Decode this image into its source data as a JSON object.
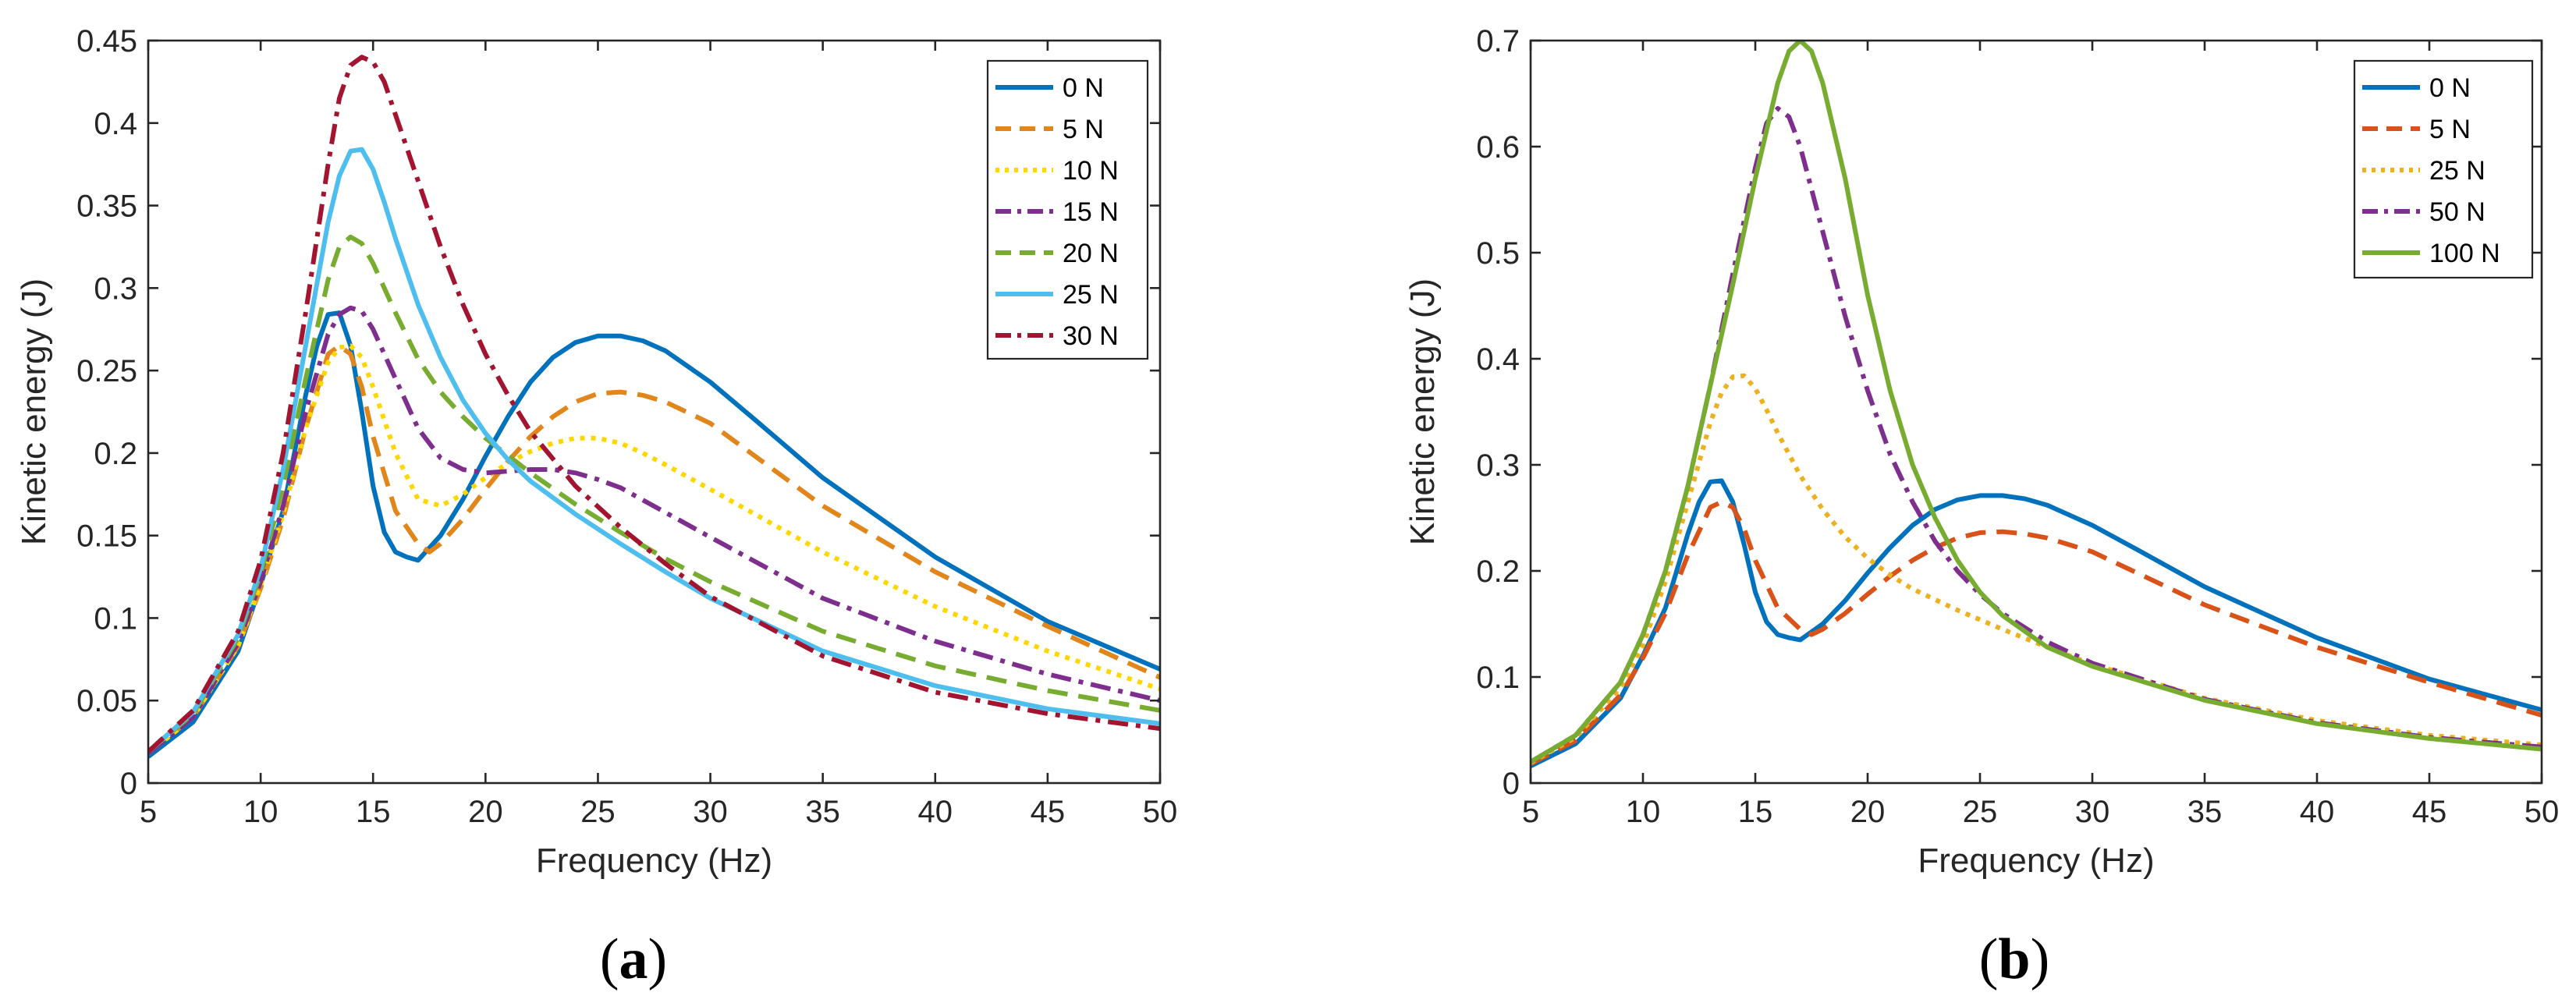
{
  "colors": {
    "blue": "#0072BD",
    "orange": "#D95319",
    "orange_light": "#E0861A",
    "yellow": "#EDB120",
    "yellow_bright": "#FFD700",
    "purple": "#7E2F8E",
    "green": "#77AC30",
    "cyan": "#4DBEEE",
    "red": "#A2142F"
  },
  "chart_data": [
    {
      "type": "line",
      "panel_label_open": "(",
      "panel_label": "a",
      "panel_label_close": ")",
      "title": "",
      "xlabel": "Frequency (Hz)",
      "ylabel": "Kinetic energy (J)",
      "xlim": [
        5,
        50
      ],
      "ylim": [
        0,
        0.45
      ],
      "xticks": [
        5,
        10,
        15,
        20,
        25,
        30,
        35,
        40,
        45,
        50
      ],
      "xtick_labels": [
        "5",
        "10",
        "15",
        "20",
        "25",
        "30",
        "35",
        "40",
        "45",
        "50"
      ],
      "yticks": [
        0,
        0.05,
        0.1,
        0.15,
        0.2,
        0.25,
        0.3,
        0.35,
        0.4,
        0.45
      ],
      "ytick_labels": [
        "0",
        "0.05",
        "0.1",
        "0.15",
        "0.2",
        "0.25",
        "0.3",
        "0.35",
        "0.4",
        "0.45"
      ],
      "legend_position": "top-right",
      "series": [
        {
          "name": "0 N",
          "color": "#0072BD",
          "dash": "solid",
          "x": [
            5,
            7,
            9,
            10,
            11,
            12,
            12.5,
            13,
            13.5,
            14,
            14.5,
            15,
            15.5,
            16,
            16.5,
            17,
            18,
            19,
            20,
            21,
            22,
            23,
            24,
            25,
            26,
            27,
            28,
            30,
            32,
            35,
            40,
            45,
            50
          ],
          "y": [
            0.016,
            0.037,
            0.08,
            0.12,
            0.165,
            0.235,
            0.265,
            0.284,
            0.285,
            0.265,
            0.225,
            0.18,
            0.152,
            0.14,
            0.137,
            0.135,
            0.15,
            0.172,
            0.198,
            0.222,
            0.243,
            0.258,
            0.267,
            0.271,
            0.271,
            0.268,
            0.262,
            0.243,
            0.22,
            0.185,
            0.137,
            0.098,
            0.069
          ]
        },
        {
          "name": "5 N",
          "color": "#E0861A",
          "dash": "dashed",
          "x": [
            5,
            7,
            9,
            10,
            11,
            12,
            13,
            13.5,
            14,
            14.5,
            15,
            16,
            17,
            17.5,
            18,
            19,
            20,
            21,
            22,
            23,
            24,
            25,
            26,
            27,
            28,
            30,
            35,
            40,
            45,
            50
          ],
          "y": [
            0.018,
            0.04,
            0.083,
            0.118,
            0.16,
            0.215,
            0.26,
            0.265,
            0.26,
            0.24,
            0.21,
            0.165,
            0.145,
            0.14,
            0.145,
            0.16,
            0.178,
            0.195,
            0.21,
            0.222,
            0.231,
            0.236,
            0.237,
            0.235,
            0.231,
            0.218,
            0.168,
            0.128,
            0.095,
            0.064
          ]
        },
        {
          "name": "10 N",
          "color": "#FFD700",
          "dash": "dotted",
          "x": [
            5,
            7,
            9,
            10,
            11,
            12,
            13,
            13.5,
            14,
            14.5,
            15,
            16,
            17,
            18,
            19,
            20,
            21,
            22,
            23,
            24,
            25,
            26,
            27,
            28,
            30,
            35,
            40,
            45,
            50
          ],
          "y": [
            0.018,
            0.04,
            0.083,
            0.12,
            0.163,
            0.215,
            0.255,
            0.264,
            0.265,
            0.258,
            0.24,
            0.2,
            0.172,
            0.168,
            0.175,
            0.185,
            0.194,
            0.201,
            0.206,
            0.209,
            0.209,
            0.206,
            0.2,
            0.193,
            0.178,
            0.14,
            0.107,
            0.08,
            0.057
          ]
        },
        {
          "name": "15 N",
          "color": "#7E2F8E",
          "dash": "dashdot",
          "x": [
            5,
            7,
            9,
            10,
            11,
            12,
            13,
            13.5,
            14,
            14.5,
            15,
            16,
            17,
            18,
            19,
            20,
            21,
            22,
            23,
            24,
            25,
            26,
            28,
            30,
            35,
            40,
            45,
            50
          ],
          "y": [
            0.018,
            0.04,
            0.085,
            0.122,
            0.168,
            0.225,
            0.272,
            0.284,
            0.288,
            0.286,
            0.275,
            0.245,
            0.215,
            0.197,
            0.19,
            0.188,
            0.189,
            0.19,
            0.19,
            0.188,
            0.184,
            0.179,
            0.164,
            0.149,
            0.112,
            0.086,
            0.066,
            0.05
          ]
        },
        {
          "name": "20 N",
          "color": "#77AC30",
          "dash": "dashed",
          "x": [
            5,
            7,
            9,
            10,
            11,
            12,
            13,
            13.5,
            14,
            14.5,
            15,
            16,
            17,
            18,
            19,
            20,
            22,
            24,
            26,
            28,
            30,
            35,
            40,
            45,
            50
          ],
          "y": [
            0.019,
            0.042,
            0.088,
            0.127,
            0.18,
            0.245,
            0.305,
            0.325,
            0.331,
            0.327,
            0.315,
            0.285,
            0.257,
            0.237,
            0.222,
            0.209,
            0.188,
            0.169,
            0.152,
            0.136,
            0.122,
            0.092,
            0.071,
            0.056,
            0.044
          ]
        },
        {
          "name": "25 N",
          "color": "#4DBEEE",
          "dash": "solid",
          "x": [
            5,
            7,
            9,
            10,
            11,
            12,
            13,
            13.5,
            14,
            14.5,
            15,
            15.5,
            16,
            17,
            18,
            19,
            20,
            21,
            22,
            24,
            26,
            28,
            30,
            35,
            40,
            45,
            50
          ],
          "y": [
            0.019,
            0.043,
            0.09,
            0.13,
            0.19,
            0.265,
            0.34,
            0.368,
            0.383,
            0.384,
            0.372,
            0.352,
            0.33,
            0.29,
            0.258,
            0.232,
            0.212,
            0.196,
            0.183,
            0.163,
            0.145,
            0.128,
            0.112,
            0.08,
            0.059,
            0.045,
            0.036
          ]
        },
        {
          "name": "30 N",
          "color": "#A2142F",
          "dash": "dashdot",
          "x": [
            5,
            7,
            9,
            10,
            11,
            12,
            13,
            13.5,
            14,
            14.5,
            15,
            15.5,
            16,
            17,
            18,
            19,
            20,
            21,
            22,
            24,
            26,
            28,
            30,
            35,
            40,
            45,
            50
          ],
          "y": [
            0.019,
            0.044,
            0.092,
            0.135,
            0.2,
            0.285,
            0.375,
            0.415,
            0.435,
            0.44,
            0.437,
            0.425,
            0.405,
            0.365,
            0.325,
            0.29,
            0.26,
            0.235,
            0.213,
            0.18,
            0.155,
            0.133,
            0.113,
            0.077,
            0.055,
            0.042,
            0.033
          ]
        }
      ]
    },
    {
      "type": "line",
      "panel_label_open": "(",
      "panel_label": "b",
      "panel_label_close": ")",
      "title": "",
      "xlabel": "Frequency (Hz)",
      "ylabel": "Kinetic energy (J)",
      "xlim": [
        5,
        50
      ],
      "ylim": [
        0,
        0.7
      ],
      "xticks": [
        5,
        10,
        15,
        20,
        25,
        30,
        35,
        40,
        45,
        50
      ],
      "xtick_labels": [
        "5",
        "10",
        "15",
        "20",
        "25",
        "30",
        "35",
        "40",
        "45",
        "50"
      ],
      "yticks": [
        0,
        0.1,
        0.2,
        0.3,
        0.4,
        0.5,
        0.6,
        0.7
      ],
      "ytick_labels": [
        "0",
        "0.1",
        "0.2",
        "0.3",
        "0.4",
        "0.5",
        "0.6",
        "0.7"
      ],
      "legend_position": "top-right",
      "series": [
        {
          "name": "0 N",
          "color": "#0072BD",
          "dash": "solid",
          "x": [
            5,
            7,
            9,
            10,
            11,
            12,
            12.5,
            13,
            13.5,
            14,
            14.5,
            15,
            15.5,
            16,
            16.5,
            17,
            18,
            19,
            20,
            21,
            22,
            23,
            24,
            25,
            26,
            27,
            28,
            30,
            32,
            35,
            40,
            45,
            50
          ],
          "y": [
            0.016,
            0.037,
            0.08,
            0.12,
            0.165,
            0.235,
            0.265,
            0.284,
            0.285,
            0.265,
            0.225,
            0.18,
            0.152,
            0.14,
            0.137,
            0.135,
            0.15,
            0.172,
            0.198,
            0.222,
            0.243,
            0.258,
            0.267,
            0.271,
            0.271,
            0.268,
            0.262,
            0.243,
            0.22,
            0.185,
            0.137,
            0.098,
            0.069
          ]
        },
        {
          "name": "5 N",
          "color": "#D95319",
          "dash": "dashed",
          "x": [
            5,
            7,
            9,
            10,
            11,
            12,
            13,
            13.5,
            14,
            14.5,
            15,
            16,
            17,
            17.5,
            18,
            19,
            20,
            21,
            22,
            23,
            24,
            25,
            26,
            27,
            28,
            30,
            35,
            40,
            45,
            50
          ],
          "y": [
            0.018,
            0.04,
            0.083,
            0.118,
            0.16,
            0.215,
            0.26,
            0.265,
            0.26,
            0.24,
            0.21,
            0.165,
            0.145,
            0.14,
            0.145,
            0.16,
            0.178,
            0.195,
            0.21,
            0.222,
            0.231,
            0.236,
            0.237,
            0.235,
            0.231,
            0.218,
            0.168,
            0.128,
            0.095,
            0.064
          ]
        },
        {
          "name": "25 N",
          "color": "#EDB120",
          "dash": "dotted",
          "x": [
            5,
            7,
            9,
            10,
            11,
            12,
            13,
            13.5,
            14,
            14.5,
            15,
            15.5,
            16,
            17,
            18,
            19,
            20,
            21,
            22,
            24,
            26,
            28,
            30,
            35,
            40,
            45,
            50
          ],
          "y": [
            0.019,
            0.043,
            0.09,
            0.13,
            0.19,
            0.265,
            0.34,
            0.368,
            0.383,
            0.384,
            0.372,
            0.352,
            0.33,
            0.29,
            0.258,
            0.232,
            0.212,
            0.196,
            0.183,
            0.163,
            0.145,
            0.128,
            0.112,
            0.08,
            0.059,
            0.045,
            0.036
          ]
        },
        {
          "name": "50 N",
          "color": "#7E2F8E",
          "dash": "dashdot",
          "x": [
            5,
            7,
            9,
            10,
            11,
            12,
            13,
            14,
            15,
            15.5,
            16,
            16.5,
            17,
            18,
            19,
            20,
            21,
            22,
            23,
            24,
            25,
            26,
            28,
            30,
            35,
            40,
            45,
            50
          ],
          "y": [
            0.02,
            0.045,
            0.095,
            0.14,
            0.2,
            0.28,
            0.375,
            0.48,
            0.58,
            0.622,
            0.636,
            0.628,
            0.6,
            0.52,
            0.44,
            0.37,
            0.31,
            0.265,
            0.228,
            0.2,
            0.178,
            0.16,
            0.133,
            0.113,
            0.079,
            0.057,
            0.043,
            0.034
          ]
        },
        {
          "name": "100 N",
          "color": "#77AC30",
          "dash": "solid",
          "x": [
            5,
            7,
            9,
            10,
            11,
            12,
            13,
            14,
            15,
            16,
            16.5,
            17,
            17.5,
            18,
            19,
            20,
            21,
            22,
            23,
            24,
            25,
            26,
            28,
            30,
            35,
            40,
            45,
            50
          ],
          "y": [
            0.02,
            0.045,
            0.095,
            0.14,
            0.2,
            0.28,
            0.375,
            0.47,
            0.57,
            0.66,
            0.69,
            0.7,
            0.69,
            0.66,
            0.57,
            0.46,
            0.37,
            0.3,
            0.25,
            0.21,
            0.18,
            0.158,
            0.128,
            0.11,
            0.078,
            0.056,
            0.042,
            0.032
          ]
        }
      ]
    }
  ]
}
